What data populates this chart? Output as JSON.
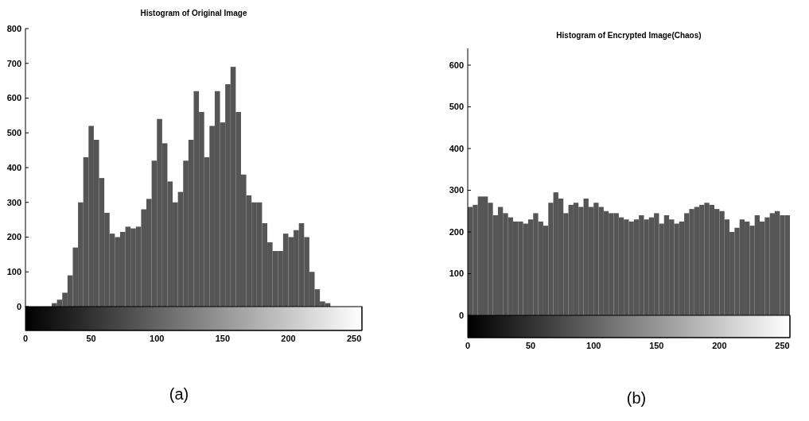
{
  "chart_data": [
    {
      "type": "histogram",
      "title": "Histogram of Original Image",
      "annotations": [
        "(a)"
      ],
      "color": "#555555",
      "bins": [
        0,
        4,
        8,
        12,
        16,
        20,
        24,
        28,
        32,
        36,
        40,
        44,
        48,
        52,
        56,
        60,
        64,
        68,
        72,
        76,
        80,
        84,
        88,
        92,
        96,
        100,
        104,
        108,
        112,
        116,
        120,
        124,
        128,
        132,
        136,
        140,
        144,
        148,
        152,
        156,
        160,
        164,
        168,
        172,
        176,
        180,
        184,
        188,
        192,
        196,
        200,
        204,
        208,
        212,
        216,
        220,
        224,
        228,
        232,
        236,
        240,
        244,
        248,
        252,
        256
      ],
      "values": [
        0,
        0,
        0,
        0,
        0,
        10,
        20,
        40,
        90,
        170,
        300,
        430,
        520,
        480,
        370,
        270,
        210,
        200,
        215,
        230,
        225,
        230,
        280,
        310,
        420,
        540,
        470,
        360,
        300,
        330,
        420,
        480,
        620,
        560,
        430,
        520,
        620,
        530,
        640,
        690,
        560,
        380,
        320,
        300,
        300,
        240,
        185,
        160,
        160,
        210,
        200,
        220,
        240,
        200,
        100,
        50,
        15,
        10,
        0,
        0,
        0,
        0,
        0,
        0
      ],
      "xlim": [
        0,
        256
      ],
      "xticks": [
        0,
        50,
        100,
        150,
        200,
        250
      ],
      "ylim": [
        0,
        800
      ],
      "yticks": [
        0,
        100,
        200,
        300,
        400,
        500,
        600,
        700,
        800
      ]
    },
    {
      "type": "histogram",
      "title": "Histogram of Encrypted Image(Chaos)",
      "annotations": [
        "(b)"
      ],
      "color": "#555555",
      "bins": [
        0,
        4,
        8,
        12,
        16,
        20,
        24,
        28,
        32,
        36,
        40,
        44,
        48,
        52,
        56,
        60,
        64,
        68,
        72,
        76,
        80,
        84,
        88,
        92,
        96,
        100,
        104,
        108,
        112,
        116,
        120,
        124,
        128,
        132,
        136,
        140,
        144,
        148,
        152,
        156,
        160,
        164,
        168,
        172,
        176,
        180,
        184,
        188,
        192,
        196,
        200,
        204,
        208,
        212,
        216,
        220,
        224,
        228,
        232,
        236,
        240,
        244,
        248,
        252,
        256
      ],
      "values": [
        260,
        265,
        285,
        285,
        270,
        240,
        260,
        245,
        235,
        225,
        225,
        220,
        230,
        245,
        225,
        215,
        270,
        295,
        280,
        245,
        265,
        270,
        260,
        280,
        260,
        270,
        260,
        250,
        245,
        245,
        235,
        230,
        225,
        230,
        240,
        230,
        235,
        245,
        220,
        240,
        230,
        220,
        225,
        245,
        255,
        260,
        265,
        270,
        265,
        255,
        250,
        230,
        200,
        210,
        230,
        225,
        215,
        240,
        225,
        235,
        245,
        250,
        240,
        240
      ],
      "xlim": [
        0,
        256
      ],
      "xticks": [
        0,
        50,
        100,
        150,
        200,
        250
      ],
      "ylim": [
        0,
        640
      ],
      "yticks": [
        0,
        100,
        200,
        300,
        400,
        500,
        600
      ]
    }
  ]
}
